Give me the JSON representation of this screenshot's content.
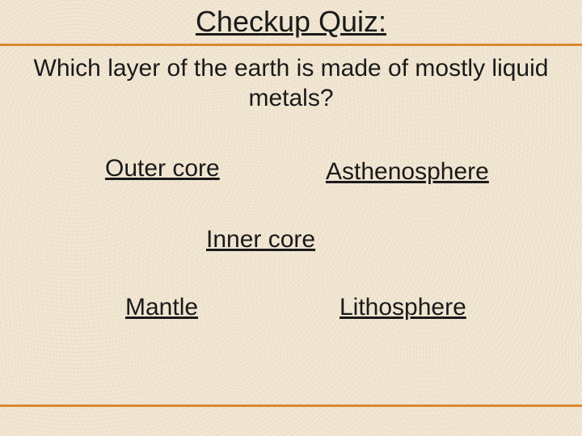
{
  "colors": {
    "background": "#f2e8d5",
    "rule": "#d98a2b",
    "text": "#1a1a1a"
  },
  "typography": {
    "font_family": "Arial",
    "title_fontsize_pt": 27,
    "question_fontsize_pt": 22,
    "option_fontsize_pt": 22
  },
  "title": "Checkup Quiz:",
  "question": "Which layer of the earth is made of mostly liquid metals?",
  "options": {
    "outer_core": "Outer core",
    "asthenosphere": "Asthenosphere",
    "inner_core": "Inner core",
    "mantle": "Mantle",
    "lithosphere": "Lithosphere"
  }
}
